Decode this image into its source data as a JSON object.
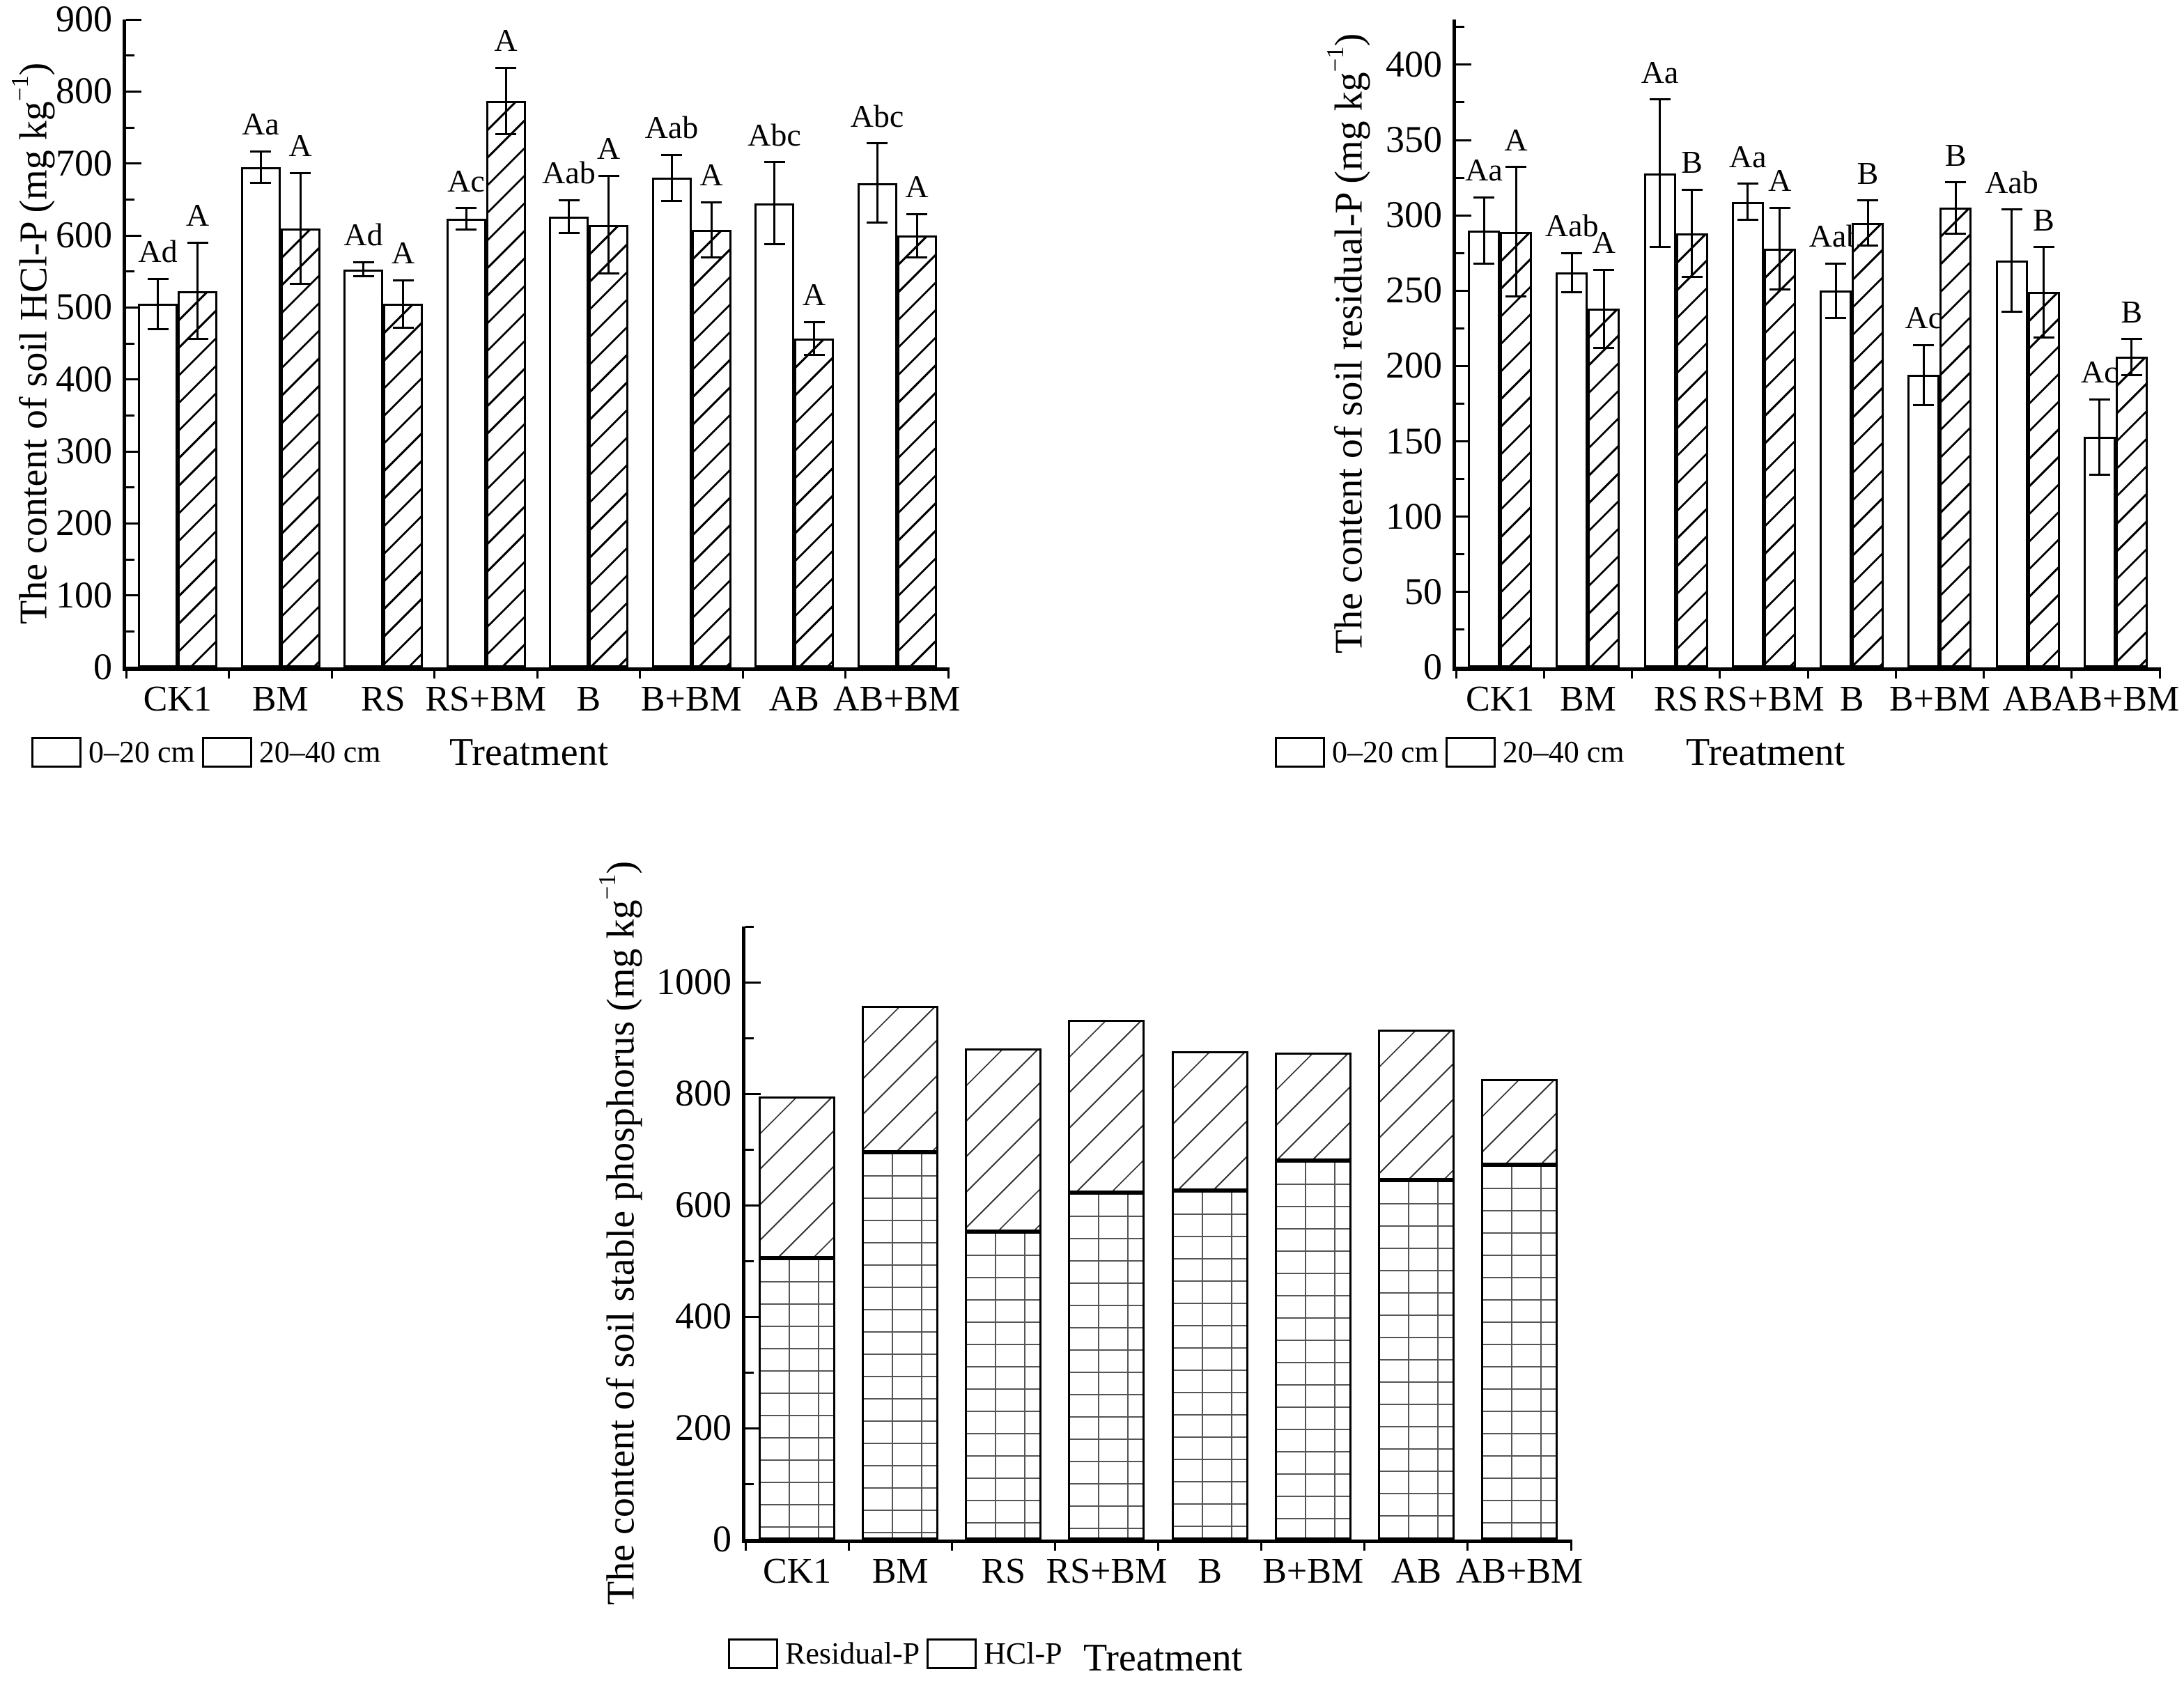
{
  "figure": {
    "xlabel": "Treatment",
    "depth_legend": [
      "0–20 cm",
      "20–40 cm"
    ],
    "fraction_legend": [
      "Residual-P",
      "HCl-P"
    ]
  },
  "chart_data": [
    {
      "type": "bar",
      "title": "",
      "ylabel": "The content of soil HCl-P (mg kg−1)",
      "ylabel_prefix": "The content of soil HCl-P (mg kg",
      "ylabel_sup": "−1",
      "ylabel_suffix": ")",
      "xlabel": "Treatment",
      "categories": [
        "CK1",
        "BM",
        "RS",
        "RS+BM",
        "B",
        "B+BM",
        "AB",
        "AB+BM"
      ],
      "ylim": [
        0,
        900
      ],
      "yticks": [
        0,
        100,
        200,
        300,
        400,
        500,
        600,
        700,
        800,
        900
      ],
      "grid": false,
      "legend_position": "bottom-left",
      "series": [
        {
          "name": "0–20 cm",
          "pattern": "plain",
          "values": [
            505,
            695,
            553,
            623,
            626,
            680,
            645,
            673
          ],
          "errors": [
            35,
            22,
            10,
            15,
            23,
            32,
            57,
            55
          ],
          "letters": [
            "Ad",
            "Aa",
            "Ad",
            "Ac",
            "Aab",
            "Aab",
            "Abc",
            "Abc"
          ]
        },
        {
          "name": "20–40 cm",
          "pattern": "diag",
          "values": [
            523,
            610,
            505,
            787,
            615,
            608,
            457,
            600
          ],
          "errors": [
            67,
            77,
            33,
            46,
            68,
            38,
            23,
            30
          ],
          "letters": [
            "A",
            "A",
            "A",
            "A",
            "A",
            "A",
            "A",
            "A"
          ]
        }
      ]
    },
    {
      "type": "bar",
      "title": "",
      "ylabel": "The content of soil residual-P (mg kg−1)",
      "ylabel_prefix": "The content of soil residual-P (mg kg",
      "ylabel_sup": "−1",
      "ylabel_suffix": ")",
      "xlabel": "Treatment",
      "categories": [
        "CK1",
        "BM",
        "RS",
        "RS+BM",
        "B",
        "B+BM",
        "AB",
        "AB+BM"
      ],
      "ylim": [
        0,
        400
      ],
      "yticks": [
        0,
        50,
        100,
        150,
        200,
        250,
        300,
        350,
        400
      ],
      "grid": false,
      "legend_position": "bottom-left",
      "series": [
        {
          "name": "0–20 cm",
          "pattern": "plain",
          "values": [
            290,
            262,
            328,
            309,
            250,
            194,
            270,
            153
          ],
          "errors": [
            22,
            13,
            49,
            12,
            18,
            20,
            34,
            25
          ],
          "letters": [
            "Aa",
            "Aab",
            "Aa",
            "Aa",
            "Aab",
            "Ac",
            "Aab",
            "Ac"
          ]
        },
        {
          "name": "20–40 cm",
          "pattern": "diag",
          "values": [
            289,
            238,
            288,
            278,
            295,
            305,
            249,
            206
          ],
          "errors": [
            43,
            26,
            29,
            27,
            15,
            17,
            30,
            12
          ],
          "letters": [
            "A",
            "A",
            "B",
            "A",
            "B",
            "B",
            "B",
            "B"
          ]
        }
      ]
    },
    {
      "type": "stacked-bar",
      "title": "",
      "ylabel": "The content of soil stable phosphorus (mg kg−1)",
      "ylabel_prefix": "The content of soil stable phosphorus (mg kg",
      "ylabel_sup": "−1",
      "ylabel_suffix": ")",
      "xlabel": "Treatment",
      "categories": [
        "CK1",
        "BM",
        "RS",
        "RS+BM",
        "B",
        "B+BM",
        "AB",
        "AB+BM"
      ],
      "ylim": [
        0,
        1000
      ],
      "yticks": [
        0,
        200,
        400,
        600,
        800,
        1000
      ],
      "grid": false,
      "legend_position": "bottom-left",
      "series": [
        {
          "name": "HCl-P",
          "pattern": "grid",
          "values": [
            505,
            695,
            553,
            623,
            626,
            680,
            645,
            673
          ]
        },
        {
          "name": "Residual-P",
          "pattern": "diag2",
          "values": [
            290,
            262,
            328,
            309,
            250,
            194,
            270,
            153
          ]
        }
      ],
      "totals": [
        795,
        957,
        881,
        932,
        876,
        874,
        915,
        826
      ]
    }
  ]
}
